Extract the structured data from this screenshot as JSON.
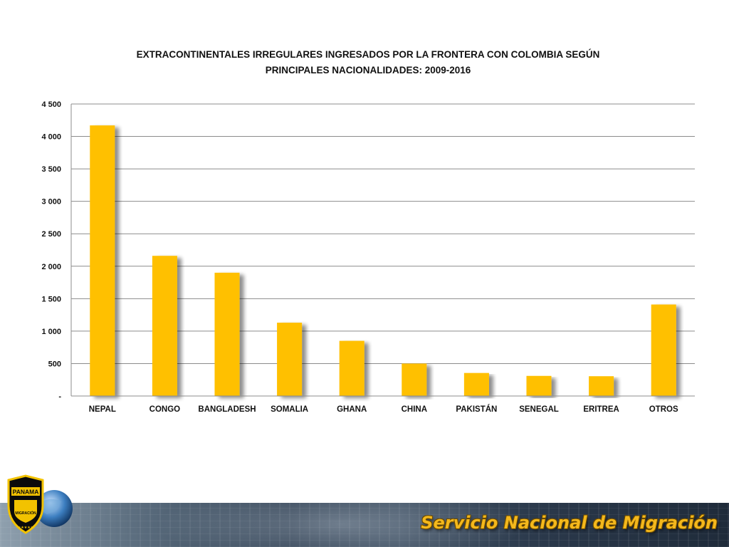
{
  "chart_data": {
    "type": "bar",
    "title_lines": [
      "EXTRACONTINENTALES IRREGULARES INGRESADOS POR LA FRONTERA CON COLOMBIA SEGÚN",
      "PRINCIPALES NACIONALIDADES: 2009-2016"
    ],
    "categories": [
      "NEPAL",
      "CONGO",
      "BANGLADESH",
      "SOMALIA",
      "GHANA",
      "CHINA",
      "PAKISTÁN",
      "SENEGAL",
      "ERITREA",
      "OTROS"
    ],
    "values": [
      4170,
      2160,
      1900,
      1130,
      850,
      500,
      355,
      310,
      305,
      1410
    ],
    "ylim": [
      0,
      4500
    ],
    "yticks": [
      0,
      500,
      1000,
      1500,
      2000,
      2500,
      3000,
      3500,
      4000,
      4500
    ],
    "ytick_labels": [
      "-",
      "500",
      "1 000",
      "1 500",
      "2 000",
      "2 500",
      "3 000",
      "3 500",
      "4 000",
      "4 500"
    ],
    "bar_color": "#ffc000",
    "grid": true,
    "xlabel": "",
    "ylabel": ""
  },
  "footer": {
    "title": "Servicio Nacional de Migración",
    "logo_text_top": "PANAMA",
    "logo_text_bottom": "MIGRACIÓN",
    "logo_stars": "★★★★★"
  }
}
